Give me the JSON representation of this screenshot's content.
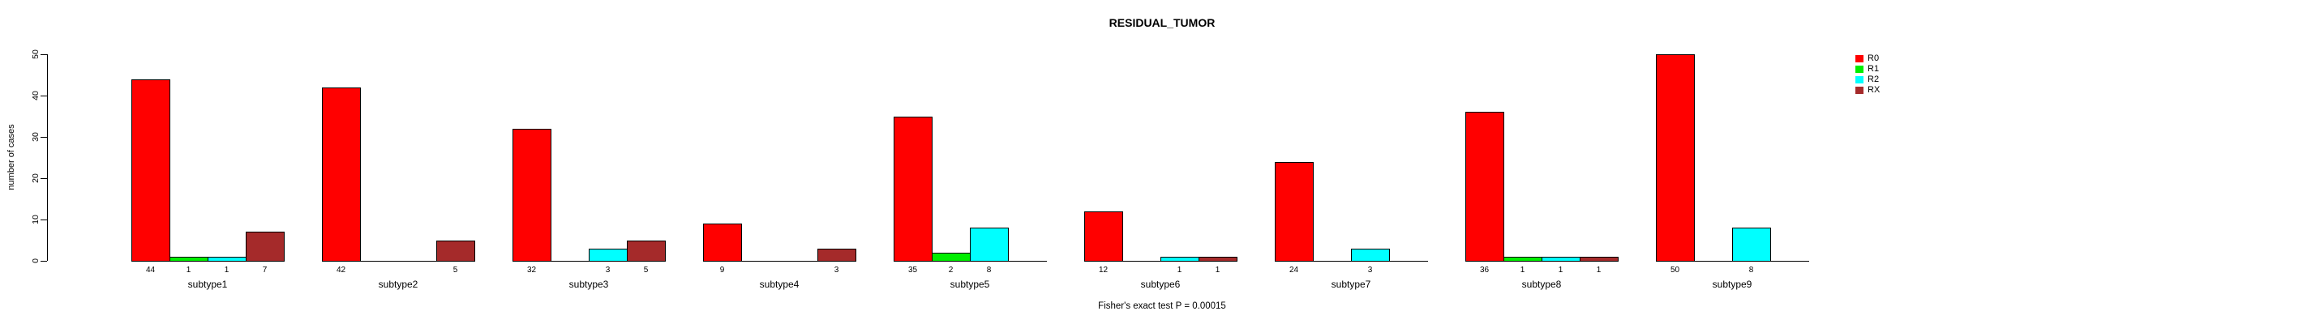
{
  "chart_data": {
    "type": "bar",
    "title": "RESIDUAL_TUMOR",
    "ylabel": "number of cases",
    "xlabel": "",
    "ylim": [
      0,
      50
    ],
    "yticks": [
      0,
      10,
      20,
      30,
      40,
      50
    ],
    "grid": false,
    "legend_position": "right",
    "categories": [
      "subtype1",
      "subtype2",
      "subtype3",
      "subtype4",
      "subtype5",
      "subtype6",
      "subtype7",
      "subtype8",
      "subtype9"
    ],
    "series": [
      {
        "name": "R0",
        "color": "#FF0000",
        "values": [
          44,
          42,
          32,
          9,
          35,
          12,
          24,
          36,
          50
        ]
      },
      {
        "name": "R1",
        "color": "#00EE00",
        "values": [
          1,
          0,
          0,
          0,
          2,
          0,
          0,
          1,
          0
        ]
      },
      {
        "name": "R2",
        "color": "#00FFFF",
        "values": [
          1,
          0,
          3,
          0,
          8,
          1,
          3,
          1,
          8
        ]
      },
      {
        "name": "RX",
        "color": "#A52A2A",
        "values": [
          7,
          5,
          5,
          3,
          0,
          1,
          0,
          1,
          0
        ]
      }
    ],
    "bar_value_labels": "nonzero values printed below axis under each bar",
    "annotation": "Fisher's exact test P = 0.00015"
  },
  "colors": {
    "background": "#FFFFFF",
    "axis": "#000000",
    "text": "#000000"
  }
}
